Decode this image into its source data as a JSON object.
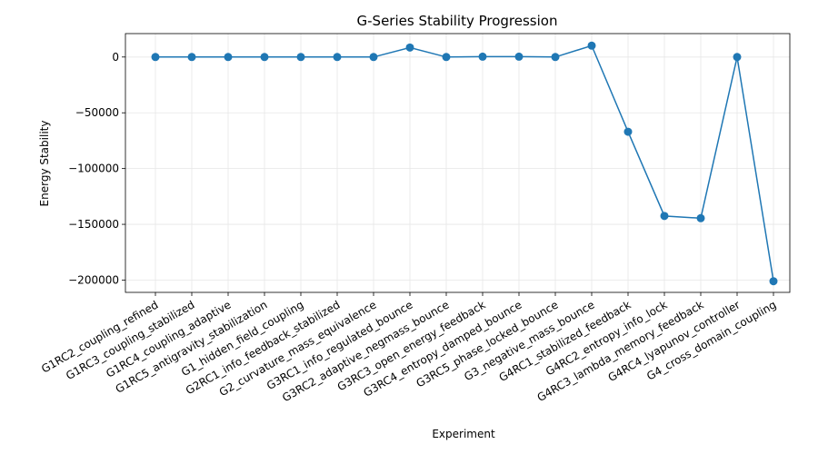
{
  "chart_data": {
    "type": "line",
    "title": "G-Series Stability Progression",
    "xlabel": "Experiment",
    "ylabel": "Energy Stability",
    "categories": [
      "G1RC2_coupling_refined",
      "G1RC3_coupling_stabilized",
      "G1RC4_coupling_adaptive",
      "G1RC5_antigravity_stabilization",
      "G1_hidden_field_coupling",
      "G2RC1_info_feedback_stabilized",
      "G2_curvature_mass_equivalence",
      "G3RC1_info_regulated_bounce",
      "G3RC2_adaptive_negmass_bounce",
      "G3RC3_open_energy_feedback",
      "G3RC4_entropy_damped_bounce",
      "G3RC5_phase_locked_bounce",
      "G3_negative_mass_bounce",
      "G4RC1_stabilized_feedback",
      "G4RC2_entropy_info_lock",
      "G4RC3_lambda_memory_feedback",
      "G4RC4_lyapunov_controller",
      "G4_cross_domain_coupling"
    ],
    "series": [
      {
        "values": [
          0,
          0,
          0,
          0,
          0,
          0,
          0,
          8500,
          0,
          300,
          300,
          0,
          10200,
          -67000,
          -142500,
          -144500,
          0,
          -201000
        ]
      }
    ],
    "ylim": [
      -211000,
      21000
    ],
    "yticks": [
      0,
      -50000,
      -100000,
      -150000,
      -200000
    ],
    "grid": true,
    "marker": "circle",
    "color": "#1f77b4"
  }
}
